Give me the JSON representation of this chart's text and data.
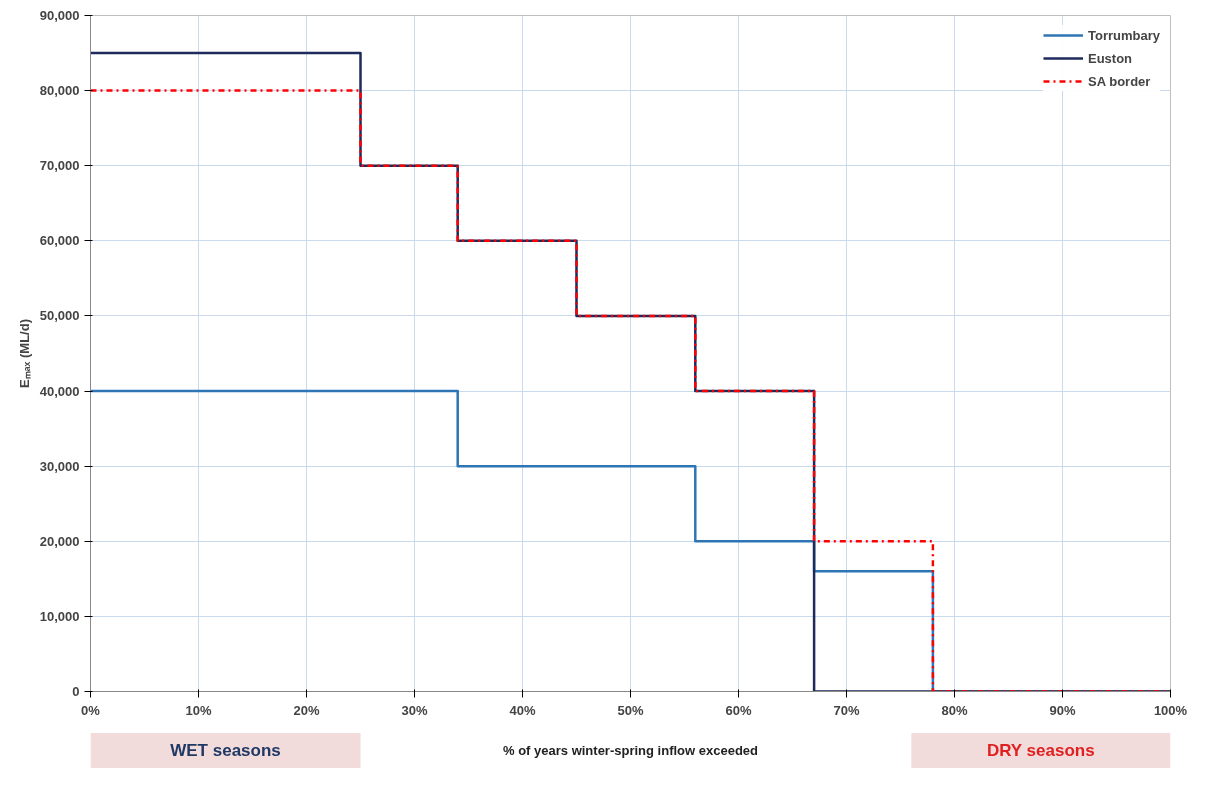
{
  "chart_data": {
    "type": "step",
    "ylabel": "Eₘₐₓ (ML/d)",
    "xlabel": "% of years winter-spring inflow exceeded",
    "annotations": [
      "WET seasons",
      "DRY seasons"
    ],
    "series": [
      {
        "name": "Torrumbary",
        "color": "#2e75b6",
        "line_style": "solid",
        "x": [
          0,
          34,
          56,
          67,
          78,
          100
        ],
        "values": [
          40000,
          30000,
          20000,
          16000,
          0,
          0
        ]
      },
      {
        "name": "Euston",
        "color": "#1f2a5c",
        "line_style": "solid",
        "x": [
          0,
          25,
          34,
          45,
          56,
          67,
          100
        ],
        "values": [
          85000,
          70000,
          60000,
          50000,
          40000,
          0,
          0
        ]
      },
      {
        "name": "SA border",
        "color": "#ff0000",
        "line_style": "dashed",
        "x": [
          0,
          25,
          34,
          45,
          56,
          67,
          78,
          100
        ],
        "values": [
          80000,
          70000,
          60000,
          50000,
          40000,
          20000,
          0,
          0
        ]
      }
    ],
    "xlim": [
      0,
      100
    ],
    "ylim": [
      0,
      90000
    ],
    "xticks": [
      {
        "value": 0,
        "label": "0%"
      },
      {
        "value": 10,
        "label": "10%"
      },
      {
        "value": 20,
        "label": "20%"
      },
      {
        "value": 30,
        "label": "30%"
      },
      {
        "value": 40,
        "label": "40%"
      },
      {
        "value": 50,
        "label": "50%"
      },
      {
        "value": 60,
        "label": "60%"
      },
      {
        "value": 70,
        "label": "70%"
      },
      {
        "value": 80,
        "label": "80%"
      },
      {
        "value": 90,
        "label": "90%"
      },
      {
        "value": 100,
        "label": "100%"
      }
    ],
    "yticks": [
      {
        "value": 0,
        "label": "0"
      },
      {
        "value": 10000,
        "label": "10,000"
      },
      {
        "value": 20000,
        "label": "20,000"
      },
      {
        "value": 30000,
        "label": "30,000"
      },
      {
        "value": 40000,
        "label": "40,000"
      },
      {
        "value": 50000,
        "label": "50,000"
      },
      {
        "value": 60000,
        "label": "60,000"
      },
      {
        "value": 70000,
        "label": "70,000"
      },
      {
        "value": 80000,
        "label": "80,000"
      },
      {
        "value": 90000,
        "label": "90,000"
      }
    ],
    "grid": true,
    "legend": "top right"
  }
}
